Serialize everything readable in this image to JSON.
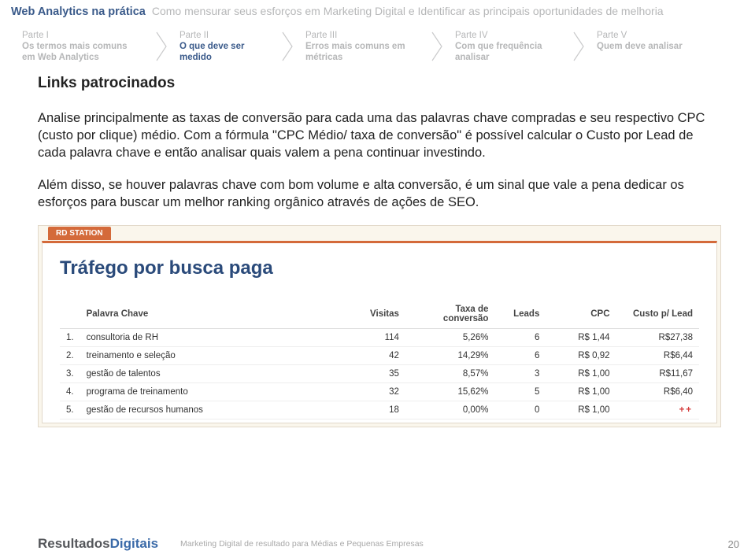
{
  "header": {
    "title": "Web Analytics na prática",
    "subtitle": "Como mensurar seus esforços em Marketing Digital e Identificar as principais oportunidades de melhoria"
  },
  "nav": {
    "items": [
      {
        "part": "Parte I",
        "label": "Os termos mais comuns em Web Analytics",
        "active": false
      },
      {
        "part": "Parte II",
        "label": "O que deve ser medido",
        "active": true
      },
      {
        "part": "Parte III",
        "label": "Erros mais comuns em métricas",
        "active": false
      },
      {
        "part": "Parte IV",
        "label": "Com que frequência analisar",
        "active": false
      },
      {
        "part": "Parte V",
        "label": "Quem deve analisar",
        "active": false
      }
    ],
    "chevron_color": "#c9cacb"
  },
  "section_heading": "Links patrocinados",
  "para1": "Analise principalmente as taxas de conversão para cada uma das palavras chave compradas e seu respectivo CPC (custo por clique) médio. Com a fórmula \"CPC Médio/ taxa de conversão\" é possível calcular o Custo por Lead de cada palavra chave e então analisar quais valem a pena continuar investindo.",
  "para2": "Além disso, se houver palavras chave com bom volume e alta conversão, é um sinal que vale a pena dedicar os esforços para buscar um melhor ranking orgânico através de ações de SEO.",
  "rd": {
    "tab_label": "RD STATION",
    "title": "Tráfego por busca paga",
    "tab_bg": "#d46a3a",
    "title_color": "#2a4a7a",
    "columns": [
      "",
      "Palavra Chave",
      "Visitas",
      "Taxa de conversão",
      "Leads",
      "CPC",
      "Custo p/ Lead"
    ],
    "rows": [
      [
        "1.",
        "consultoria de RH",
        "114",
        "5,26%",
        "6",
        "R$ 1,44",
        "R$27,38"
      ],
      [
        "2.",
        "treinamento e seleção",
        "42",
        "14,29%",
        "6",
        "R$ 0,92",
        "R$6,44"
      ],
      [
        "3.",
        "gestão de talentos",
        "35",
        "8,57%",
        "3",
        "R$ 1,00",
        "R$11,67"
      ],
      [
        "4.",
        "programa de treinamento",
        "32",
        "15,62%",
        "5",
        "R$ 1,00",
        "R$6,40"
      ],
      [
        "5.",
        "gestão de recursos humanos",
        "18",
        "0,00%",
        "0",
        "R$ 1,00",
        "++"
      ]
    ]
  },
  "footer": {
    "logo_r": "Resultados",
    "logo_d": "Digitais",
    "text": "Marketing Digital de resultado para Médias e Pequenas Empresas",
    "page": "20"
  }
}
